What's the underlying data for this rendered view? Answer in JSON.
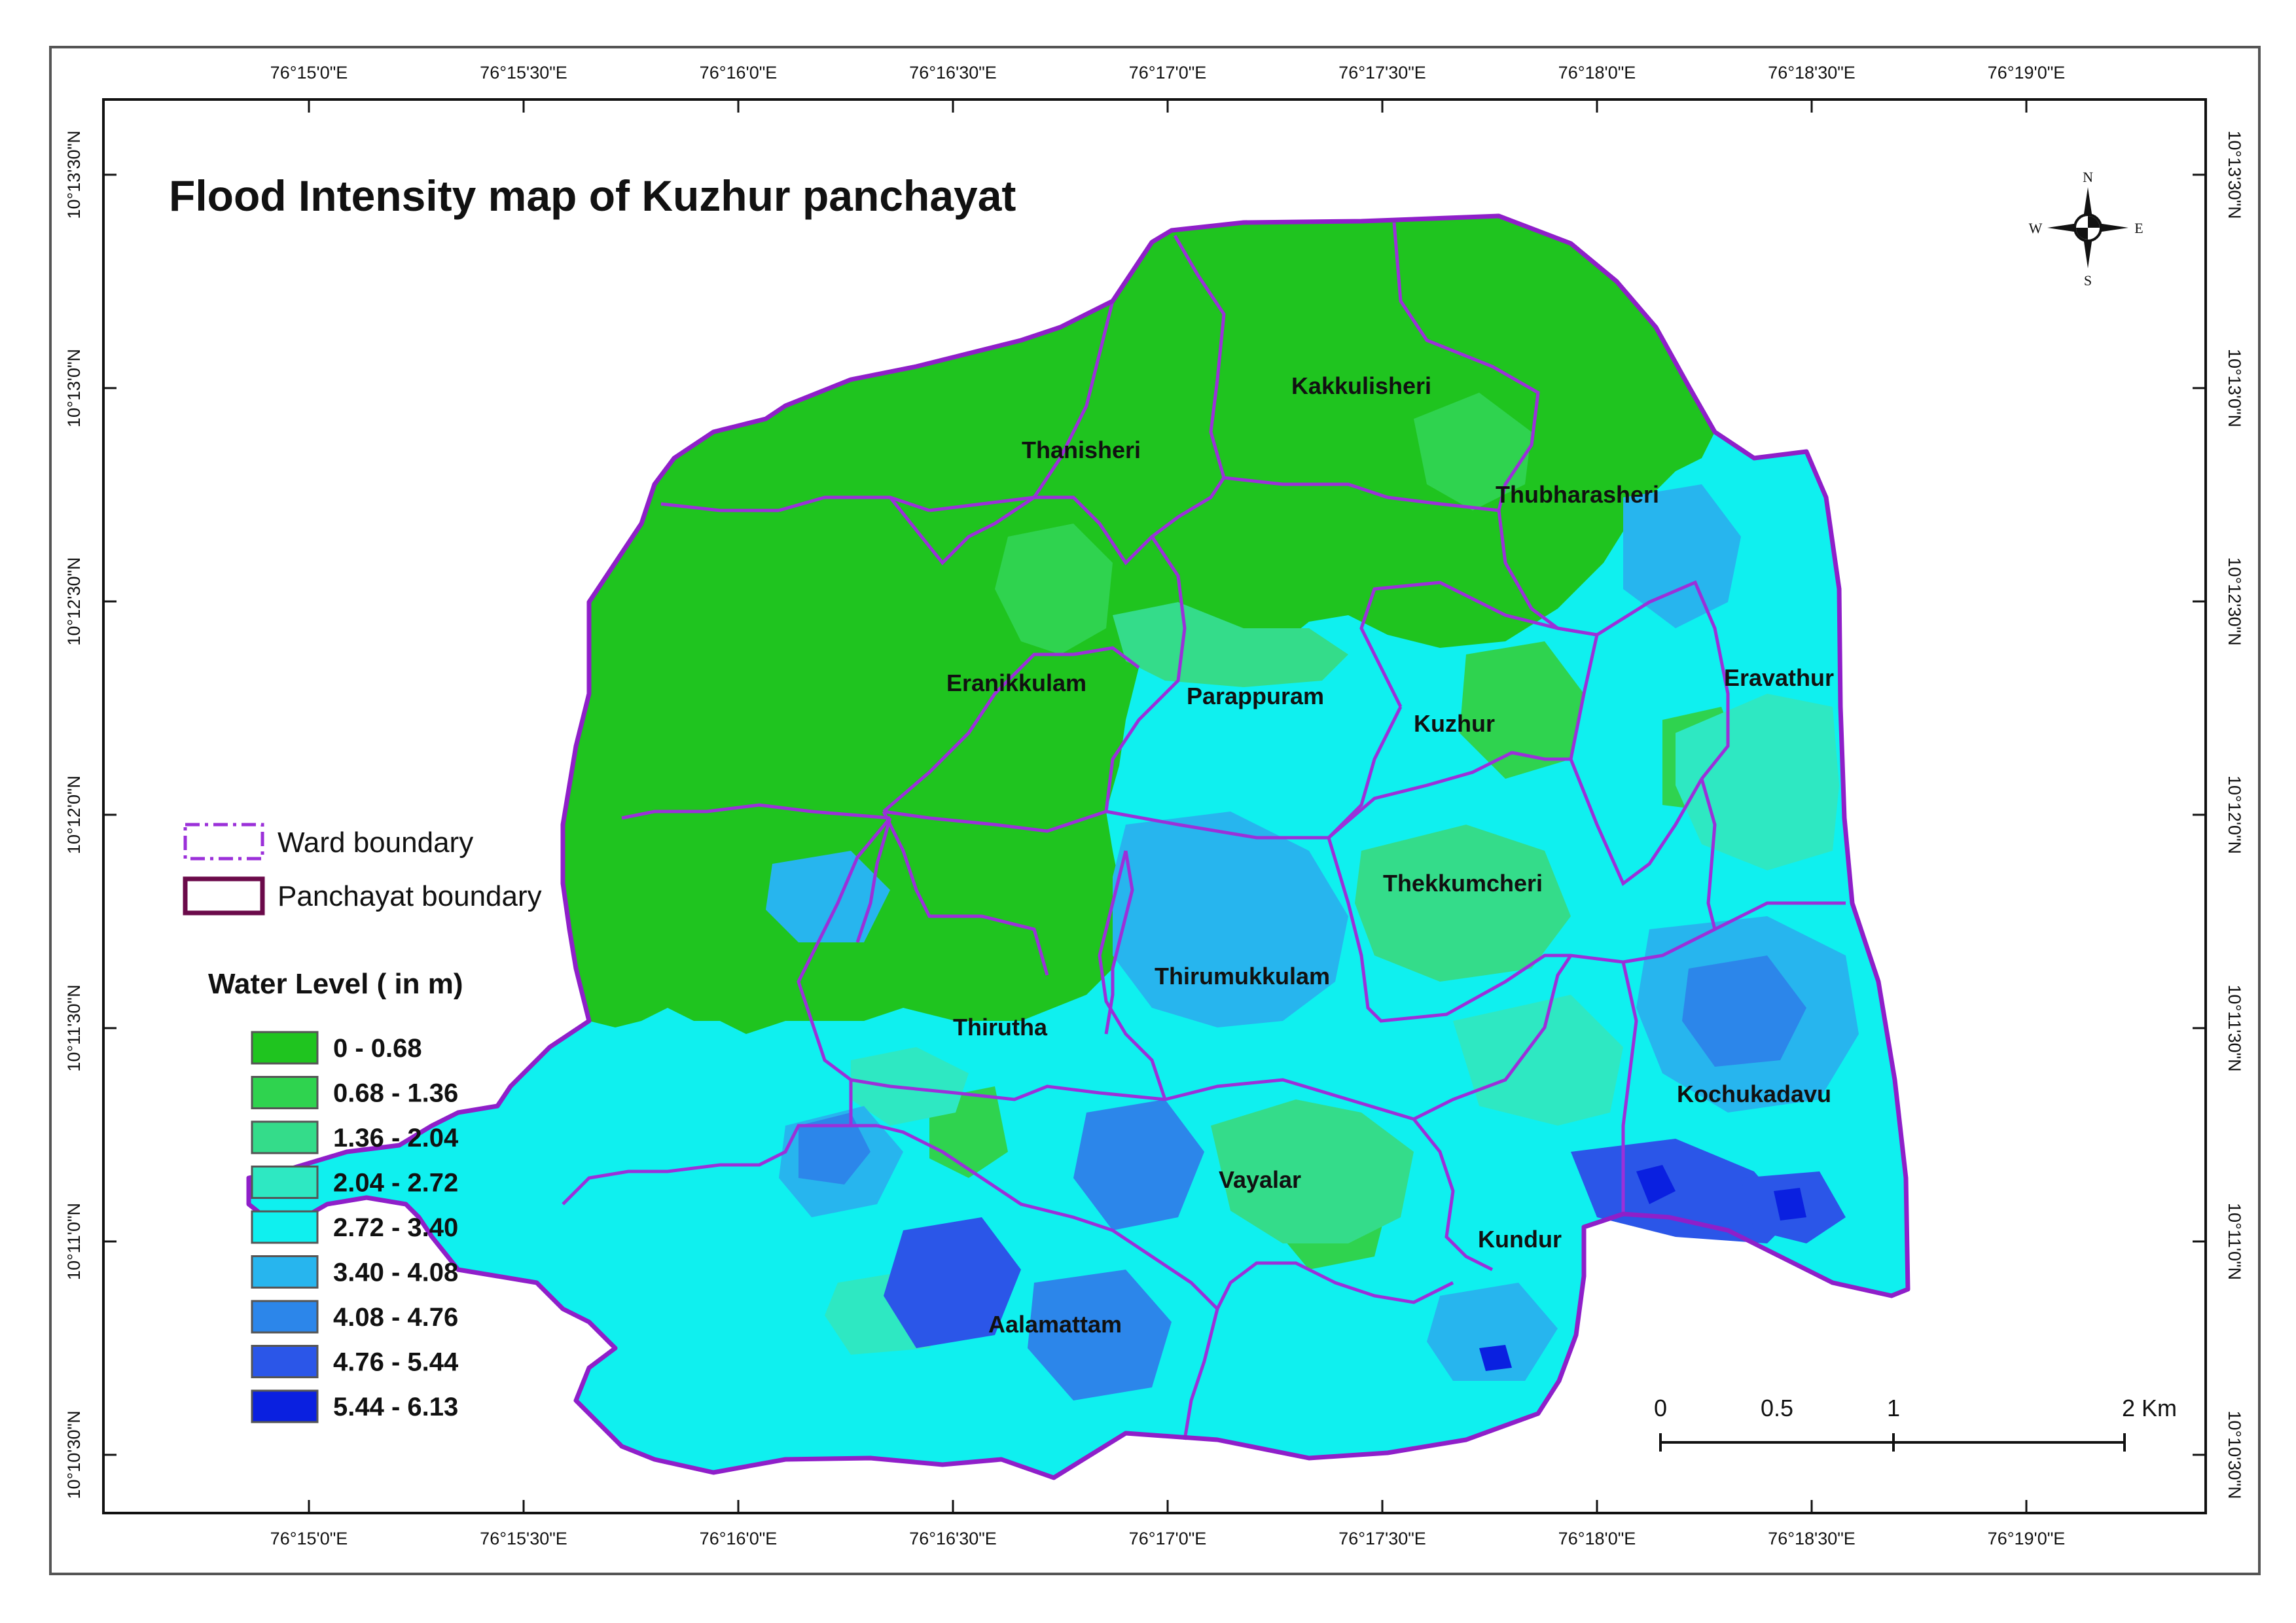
{
  "title": "Flood Intensity map of Kuzhur panchayat",
  "graticule": {
    "top_labels": [
      "76°15'0\"E",
      "76°15'30\"E",
      "76°16'0\"E",
      "76°16'30\"E",
      "76°17'0\"E",
      "76°17'30\"E",
      "76°18'0\"E",
      "76°18'30\"E",
      "76°19'0\"E"
    ],
    "bottom_labels": [
      "76°15'0\"E",
      "76°15'30\"E",
      "76°16'0\"E",
      "76°16'30\"E",
      "76°17'0\"E",
      "76°17'30\"E",
      "76°18'0\"E",
      "76°18'30\"E",
      "76°19'0\"E"
    ],
    "left_labels": [
      "10°13'30\"N",
      "10°13'0\"N",
      "10°12'30\"N",
      "10°12'0\"N",
      "10°11'30\"N",
      "10°11'0\"N",
      "10°10'30\"N"
    ],
    "right_labels": [
      "10°13'30\"N",
      "10°13'0\"N",
      "10°12'30\"N",
      "10°12'0\"N",
      "10°11'30\"N",
      "10°11'0\"N",
      "10°10'30\"N"
    ]
  },
  "north_arrow": {
    "n": "N",
    "s": "S",
    "e": "E",
    "w": "W"
  },
  "boundary_legend": {
    "ward": "Ward boundary",
    "panchayat": "Panchayat boundary",
    "ward_color": "#9b30d9",
    "panchayat_color": "#6b0a4a"
  },
  "water_level_legend": {
    "title": "Water Level ( in m)",
    "classes": [
      {
        "label": "0 - 0.68",
        "color": "#1fc41f"
      },
      {
        "label": "0.68 - 1.36",
        "color": "#2fd34f"
      },
      {
        "label": "1.36 - 2.04",
        "color": "#34dc8a"
      },
      {
        "label": "2.04 - 2.72",
        "color": "#2ee8c2"
      },
      {
        "label": "2.72 - 3.40",
        "color": "#0ff0ef"
      },
      {
        "label": "3.40 - 4.08",
        "color": "#27b5ee"
      },
      {
        "label": "4.08 - 4.76",
        "color": "#2c86ea"
      },
      {
        "label": "4.76 - 5.44",
        "color": "#2b56e8"
      },
      {
        "label": "5.44 - 6.13",
        "color": "#0a20e0"
      }
    ]
  },
  "wards": [
    "Kakkulisheri",
    "Thanisheri",
    "Thubharasheri",
    "Eranikkulam",
    "Parappuram",
    "Kuzhur",
    "Eravathur",
    "Thekkumcheri",
    "Thirumukkulam",
    "Thirutha",
    "Kochukadavu",
    "Vayalar",
    "Kundur",
    "Aalamattam"
  ],
  "scale_bar": {
    "labels": [
      "0",
      "0.5",
      "1",
      "2 Km"
    ]
  }
}
